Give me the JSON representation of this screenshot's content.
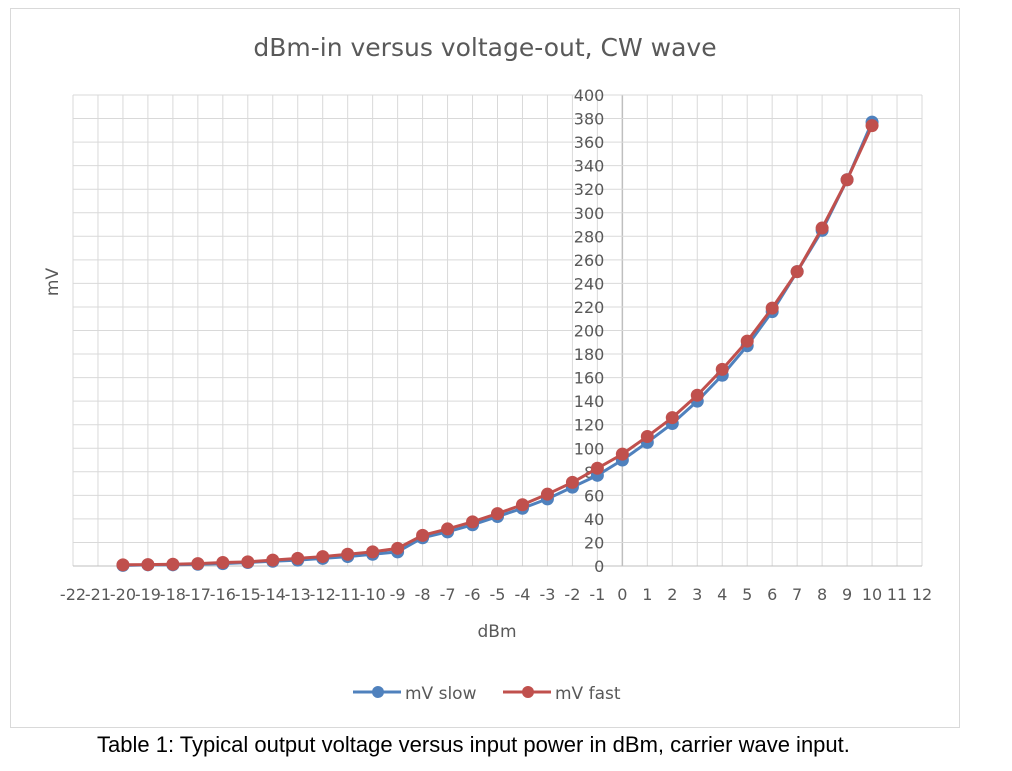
{
  "chart_data": {
    "type": "line",
    "title": "dBm-in versus voltage-out, CW wave",
    "xlabel": "dBm",
    "ylabel": "mV",
    "xlim": [
      -22,
      12
    ],
    "ylim": [
      0,
      400
    ],
    "x_ticks": [
      -22,
      -21,
      -20,
      -19,
      -18,
      -17,
      -16,
      -15,
      -14,
      -13,
      -12,
      -11,
      -10,
      -9,
      -8,
      -7,
      -6,
      -5,
      -4,
      -3,
      -2,
      -1,
      0,
      1,
      2,
      3,
      4,
      5,
      6,
      7,
      8,
      9,
      10,
      11,
      12
    ],
    "y_ticks": [
      0,
      20,
      40,
      60,
      80,
      100,
      120,
      140,
      160,
      180,
      200,
      220,
      240,
      260,
      280,
      300,
      320,
      340,
      360,
      380,
      400
    ],
    "grid": true,
    "legend_position": "bottom",
    "x": [
      -20,
      -19,
      -18,
      -17,
      -16,
      -15,
      -14,
      -13,
      -12,
      -11,
      -10,
      -9,
      -8,
      -7,
      -6,
      -5,
      -4,
      -3,
      -2,
      -1,
      0,
      1,
      2,
      3,
      4,
      5,
      6,
      7,
      8,
      9,
      10
    ],
    "series": [
      {
        "name": "mV slow",
        "color": "#4f81bd",
        "values": [
          0.5,
          1,
          1,
          1.5,
          2,
          3,
          4,
          5,
          6.5,
          8,
          10,
          12,
          24,
          29,
          35,
          42,
          49,
          57,
          67,
          77,
          90,
          105,
          121,
          140,
          162,
          187,
          216,
          250,
          285,
          328,
          377
        ]
      },
      {
        "name": "mV fast",
        "color": "#c0504d",
        "values": [
          1,
          1.2,
          1.5,
          2,
          3,
          3.5,
          5,
          6.5,
          8,
          10,
          12,
          15,
          26,
          31.5,
          37.5,
          44.5,
          52,
          61,
          71,
          83,
          95,
          110,
          126,
          145,
          167,
          191,
          219,
          250,
          287,
          328,
          374
        ]
      }
    ]
  },
  "caption": "Table 1: Typical output voltage versus input power in dBm, carrier wave input."
}
